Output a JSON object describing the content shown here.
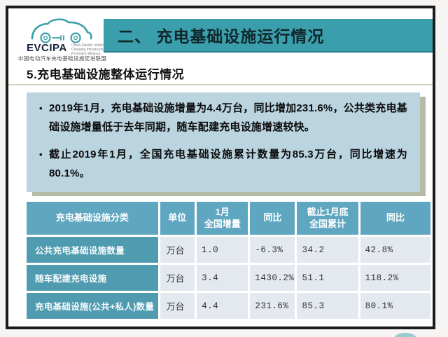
{
  "logo": {
    "wordmark": "EVCIPA",
    "tagline": "China Electric Vehicle\nCharging Infrastructure\nPromotion Alliance",
    "chinese_name": "中国电动汽车充电基础设施促进联盟"
  },
  "header": {
    "title": "二、 充电基础设施运行情况"
  },
  "section": {
    "subtitle": "5.充电基础设施整体运行情况"
  },
  "highlights": {
    "bullets": [
      "2019年1月，充电基础设施增量为4.4万台，同比增加231.6%，公共类充电基础设施增量低于去年同期，随车配建充电设施增速较快。",
      "截止2019年1月，全国充电基础设施累计数量为85.3万台，同比增速为80.1%。"
    ]
  },
  "table": {
    "columns": [
      "充电基础设施分类",
      "单位",
      "1月\n全国增量",
      "同比",
      "截止1月底\n全国累计",
      "同比"
    ],
    "rows": [
      [
        "公共充电基础设施数量",
        "万台",
        "1.0",
        "-6.3%",
        "34.2",
        "42.8%"
      ],
      [
        "随车配建充电设施",
        "万台",
        "3.4",
        "1430.2%",
        "51.1",
        "118.2%"
      ],
      [
        "充电基础设施(公共+私人)数量",
        "万台",
        "4.4",
        "231.6%",
        "85.3",
        "80.1%"
      ]
    ]
  },
  "colors": {
    "title_bar": "#3b9eac",
    "highlight_box": "#bad4e0",
    "box_shadow": "#b4bca6",
    "table_header": "#5fa6c0",
    "table_category": "#4f9bb0",
    "table_cell": "#e3e9ee",
    "frame_border": "#1c1c1c",
    "logo_teal": "#3aa0a8"
  }
}
